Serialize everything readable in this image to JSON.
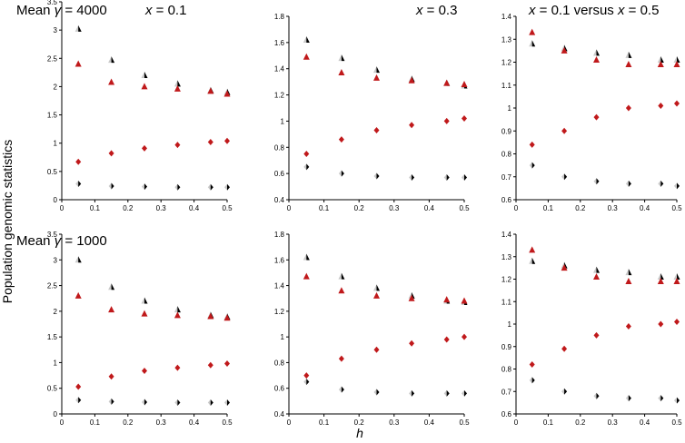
{
  "ylabel": "Population genomic statistics",
  "xlabel": "h",
  "colors": {
    "red": "#c0191b",
    "black": "#000000",
    "grey": "#c8c8c8"
  },
  "chart_data": [
    {
      "type": "scatter",
      "panel": "top-left",
      "title_parts": [
        "Mean ",
        "γ",
        " = 4000"
      ],
      "header": "x = 0.1",
      "xlim": [
        0,
        0.5
      ],
      "ylim": [
        0,
        3.5
      ],
      "xticks": [
        "0",
        "0.1",
        "0.2",
        "0.3",
        "0.4",
        "0.5"
      ],
      "yticks": [
        "0",
        "0.5",
        "1",
        "1.5",
        "2",
        "2.5",
        "3",
        "3.5"
      ],
      "series": [
        {
          "marker": "half-triangle",
          "x": [
            0.05,
            0.15,
            0.25,
            0.35,
            0.45,
            0.5
          ],
          "y": [
            3.02,
            2.47,
            2.2,
            2.05,
            1.93,
            1.9
          ]
        },
        {
          "marker": "triangle",
          "x": [
            0.05,
            0.15,
            0.25,
            0.35,
            0.45,
            0.5
          ],
          "y": [
            2.4,
            2.08,
            2.0,
            1.96,
            1.92,
            1.87
          ]
        },
        {
          "marker": "diamond",
          "x": [
            0.05,
            0.15,
            0.25,
            0.35,
            0.45,
            0.5
          ],
          "y": [
            0.67,
            0.82,
            0.91,
            0.97,
            1.02,
            1.04
          ]
        },
        {
          "marker": "half-diamond",
          "x": [
            0.05,
            0.15,
            0.25,
            0.35,
            0.45,
            0.5
          ],
          "y": [
            0.28,
            0.24,
            0.23,
            0.22,
            0.22,
            0.22
          ]
        }
      ]
    },
    {
      "type": "scatter",
      "panel": "top-middle",
      "title_parts": [],
      "header": "x = 0.3",
      "xlim": [
        0,
        0.5
      ],
      "ylim": [
        0.4,
        1.8
      ],
      "xticks": [
        "0",
        "0.1",
        "0.2",
        "0.3",
        "0.4",
        "0.5"
      ],
      "yticks": [
        "0.4",
        "0.6",
        "0.8",
        "1",
        "1.2",
        "1.4",
        "1.6",
        "1.8"
      ],
      "series": [
        {
          "marker": "half-triangle",
          "x": [
            0.05,
            0.15,
            0.25,
            0.35,
            0.45,
            0.5
          ],
          "y": [
            1.62,
            1.48,
            1.39,
            1.32,
            1.29,
            1.27
          ]
        },
        {
          "marker": "triangle",
          "x": [
            0.05,
            0.15,
            0.25,
            0.35,
            0.45,
            0.5
          ],
          "y": [
            1.49,
            1.37,
            1.33,
            1.31,
            1.29,
            1.28
          ]
        },
        {
          "marker": "diamond",
          "x": [
            0.05,
            0.15,
            0.25,
            0.35,
            0.45,
            0.5
          ],
          "y": [
            0.75,
            0.86,
            0.93,
            0.97,
            1.0,
            1.02
          ]
        },
        {
          "marker": "half-diamond",
          "x": [
            0.05,
            0.15,
            0.25,
            0.35,
            0.45,
            0.5
          ],
          "y": [
            0.65,
            0.6,
            0.58,
            0.57,
            0.57,
            0.57
          ]
        }
      ]
    },
    {
      "type": "scatter",
      "panel": "top-right",
      "title_parts": [],
      "header": "x = 0.1 versus x = 0.5",
      "xlim": [
        0,
        0.5
      ],
      "ylim": [
        0.6,
        1.4
      ],
      "xticks": [
        "0",
        "0.1",
        "0.2",
        "0.3",
        "0.4",
        "0.5"
      ],
      "yticks": [
        "0.6",
        "0.7",
        "0.8",
        "0.9",
        "1",
        "1.1",
        "1.2",
        "1.3",
        "1.4"
      ],
      "series": [
        {
          "marker": "half-triangle",
          "x": [
            0.05,
            0.15,
            0.25,
            0.35,
            0.45,
            0.5
          ],
          "y": [
            1.28,
            1.26,
            1.24,
            1.23,
            1.21,
            1.21
          ]
        },
        {
          "marker": "triangle",
          "x": [
            0.05,
            0.15,
            0.25,
            0.35,
            0.45,
            0.5
          ],
          "y": [
            1.33,
            1.25,
            1.21,
            1.19,
            1.19,
            1.19
          ]
        },
        {
          "marker": "diamond",
          "x": [
            0.05,
            0.15,
            0.25,
            0.35,
            0.45,
            0.5
          ],
          "y": [
            0.84,
            0.9,
            0.96,
            1.0,
            1.01,
            1.02
          ]
        },
        {
          "marker": "half-diamond",
          "x": [
            0.05,
            0.15,
            0.25,
            0.35,
            0.45,
            0.5
          ],
          "y": [
            0.75,
            0.7,
            0.68,
            0.67,
            0.67,
            0.66
          ]
        }
      ]
    },
    {
      "type": "scatter",
      "panel": "bottom-left",
      "title_parts": [
        "Mean ",
        "γ",
        " = 1000"
      ],
      "header": "",
      "xlim": [
        0,
        0.5
      ],
      "ylim": [
        0,
        3.5
      ],
      "xticks": [
        "0",
        "0.1",
        "0.2",
        "0.3",
        "0.4",
        "0.5"
      ],
      "yticks": [
        "0",
        "0.5",
        "1",
        "1.5",
        "2",
        "2.5",
        "3",
        "3.5"
      ],
      "series": [
        {
          "marker": "half-triangle",
          "x": [
            0.05,
            0.15,
            0.25,
            0.35,
            0.45,
            0.5
          ],
          "y": [
            3.0,
            2.47,
            2.2,
            2.03,
            1.92,
            1.89
          ]
        },
        {
          "marker": "triangle",
          "x": [
            0.05,
            0.15,
            0.25,
            0.35,
            0.45,
            0.5
          ],
          "y": [
            2.3,
            2.03,
            1.95,
            1.92,
            1.9,
            1.87
          ]
        },
        {
          "marker": "diamond",
          "x": [
            0.05,
            0.15,
            0.25,
            0.35,
            0.45,
            0.5
          ],
          "y": [
            0.53,
            0.73,
            0.84,
            0.9,
            0.95,
            0.98
          ]
        },
        {
          "marker": "half-diamond",
          "x": [
            0.05,
            0.15,
            0.25,
            0.35,
            0.45,
            0.5
          ],
          "y": [
            0.27,
            0.24,
            0.23,
            0.22,
            0.22,
            0.22
          ]
        }
      ]
    },
    {
      "type": "scatter",
      "panel": "bottom-middle",
      "title_parts": [],
      "header": "",
      "xlim": [
        0,
        0.5
      ],
      "ylim": [
        0.4,
        1.8
      ],
      "xticks": [
        "0",
        "0.1",
        "0.2",
        "0.3",
        "0.4",
        "0.5"
      ],
      "yticks": [
        "0.4",
        "0.6",
        "0.8",
        "1",
        "1.2",
        "1.4",
        "1.6",
        "1.8"
      ],
      "series": [
        {
          "marker": "half-triangle",
          "x": [
            0.05,
            0.15,
            0.25,
            0.35,
            0.45,
            0.5
          ],
          "y": [
            1.62,
            1.47,
            1.38,
            1.32,
            1.28,
            1.27
          ]
        },
        {
          "marker": "triangle",
          "x": [
            0.05,
            0.15,
            0.25,
            0.35,
            0.45,
            0.5
          ],
          "y": [
            1.47,
            1.36,
            1.32,
            1.3,
            1.29,
            1.28
          ]
        },
        {
          "marker": "diamond",
          "x": [
            0.05,
            0.15,
            0.25,
            0.35,
            0.45,
            0.5
          ],
          "y": [
            0.7,
            0.83,
            0.9,
            0.95,
            0.98,
            1.0
          ]
        },
        {
          "marker": "half-diamond",
          "x": [
            0.05,
            0.15,
            0.25,
            0.35,
            0.45,
            0.5
          ],
          "y": [
            0.65,
            0.59,
            0.57,
            0.56,
            0.56,
            0.56
          ]
        }
      ]
    },
    {
      "type": "scatter",
      "panel": "bottom-right",
      "title_parts": [],
      "header": "",
      "xlim": [
        0,
        0.5
      ],
      "ylim": [
        0.6,
        1.4
      ],
      "xticks": [
        "0",
        "0.1",
        "0.2",
        "0.3",
        "0.4",
        "0.5"
      ],
      "yticks": [
        "0.6",
        "0.7",
        "0.8",
        "0.9",
        "1",
        "1.1",
        "1.2",
        "1.3",
        "1.4"
      ],
      "series": [
        {
          "marker": "half-triangle",
          "x": [
            0.05,
            0.15,
            0.25,
            0.35,
            0.45,
            0.5
          ],
          "y": [
            1.28,
            1.26,
            1.24,
            1.23,
            1.21,
            1.21
          ]
        },
        {
          "marker": "triangle",
          "x": [
            0.05,
            0.15,
            0.25,
            0.35,
            0.45,
            0.5
          ],
          "y": [
            1.33,
            1.25,
            1.21,
            1.19,
            1.19,
            1.19
          ]
        },
        {
          "marker": "diamond",
          "x": [
            0.05,
            0.15,
            0.25,
            0.35,
            0.45,
            0.5
          ],
          "y": [
            0.82,
            0.89,
            0.95,
            0.99,
            1.0,
            1.01
          ]
        },
        {
          "marker": "half-diamond",
          "x": [
            0.05,
            0.15,
            0.25,
            0.35,
            0.45,
            0.5
          ],
          "y": [
            0.75,
            0.7,
            0.68,
            0.67,
            0.67,
            0.66
          ]
        }
      ]
    }
  ]
}
